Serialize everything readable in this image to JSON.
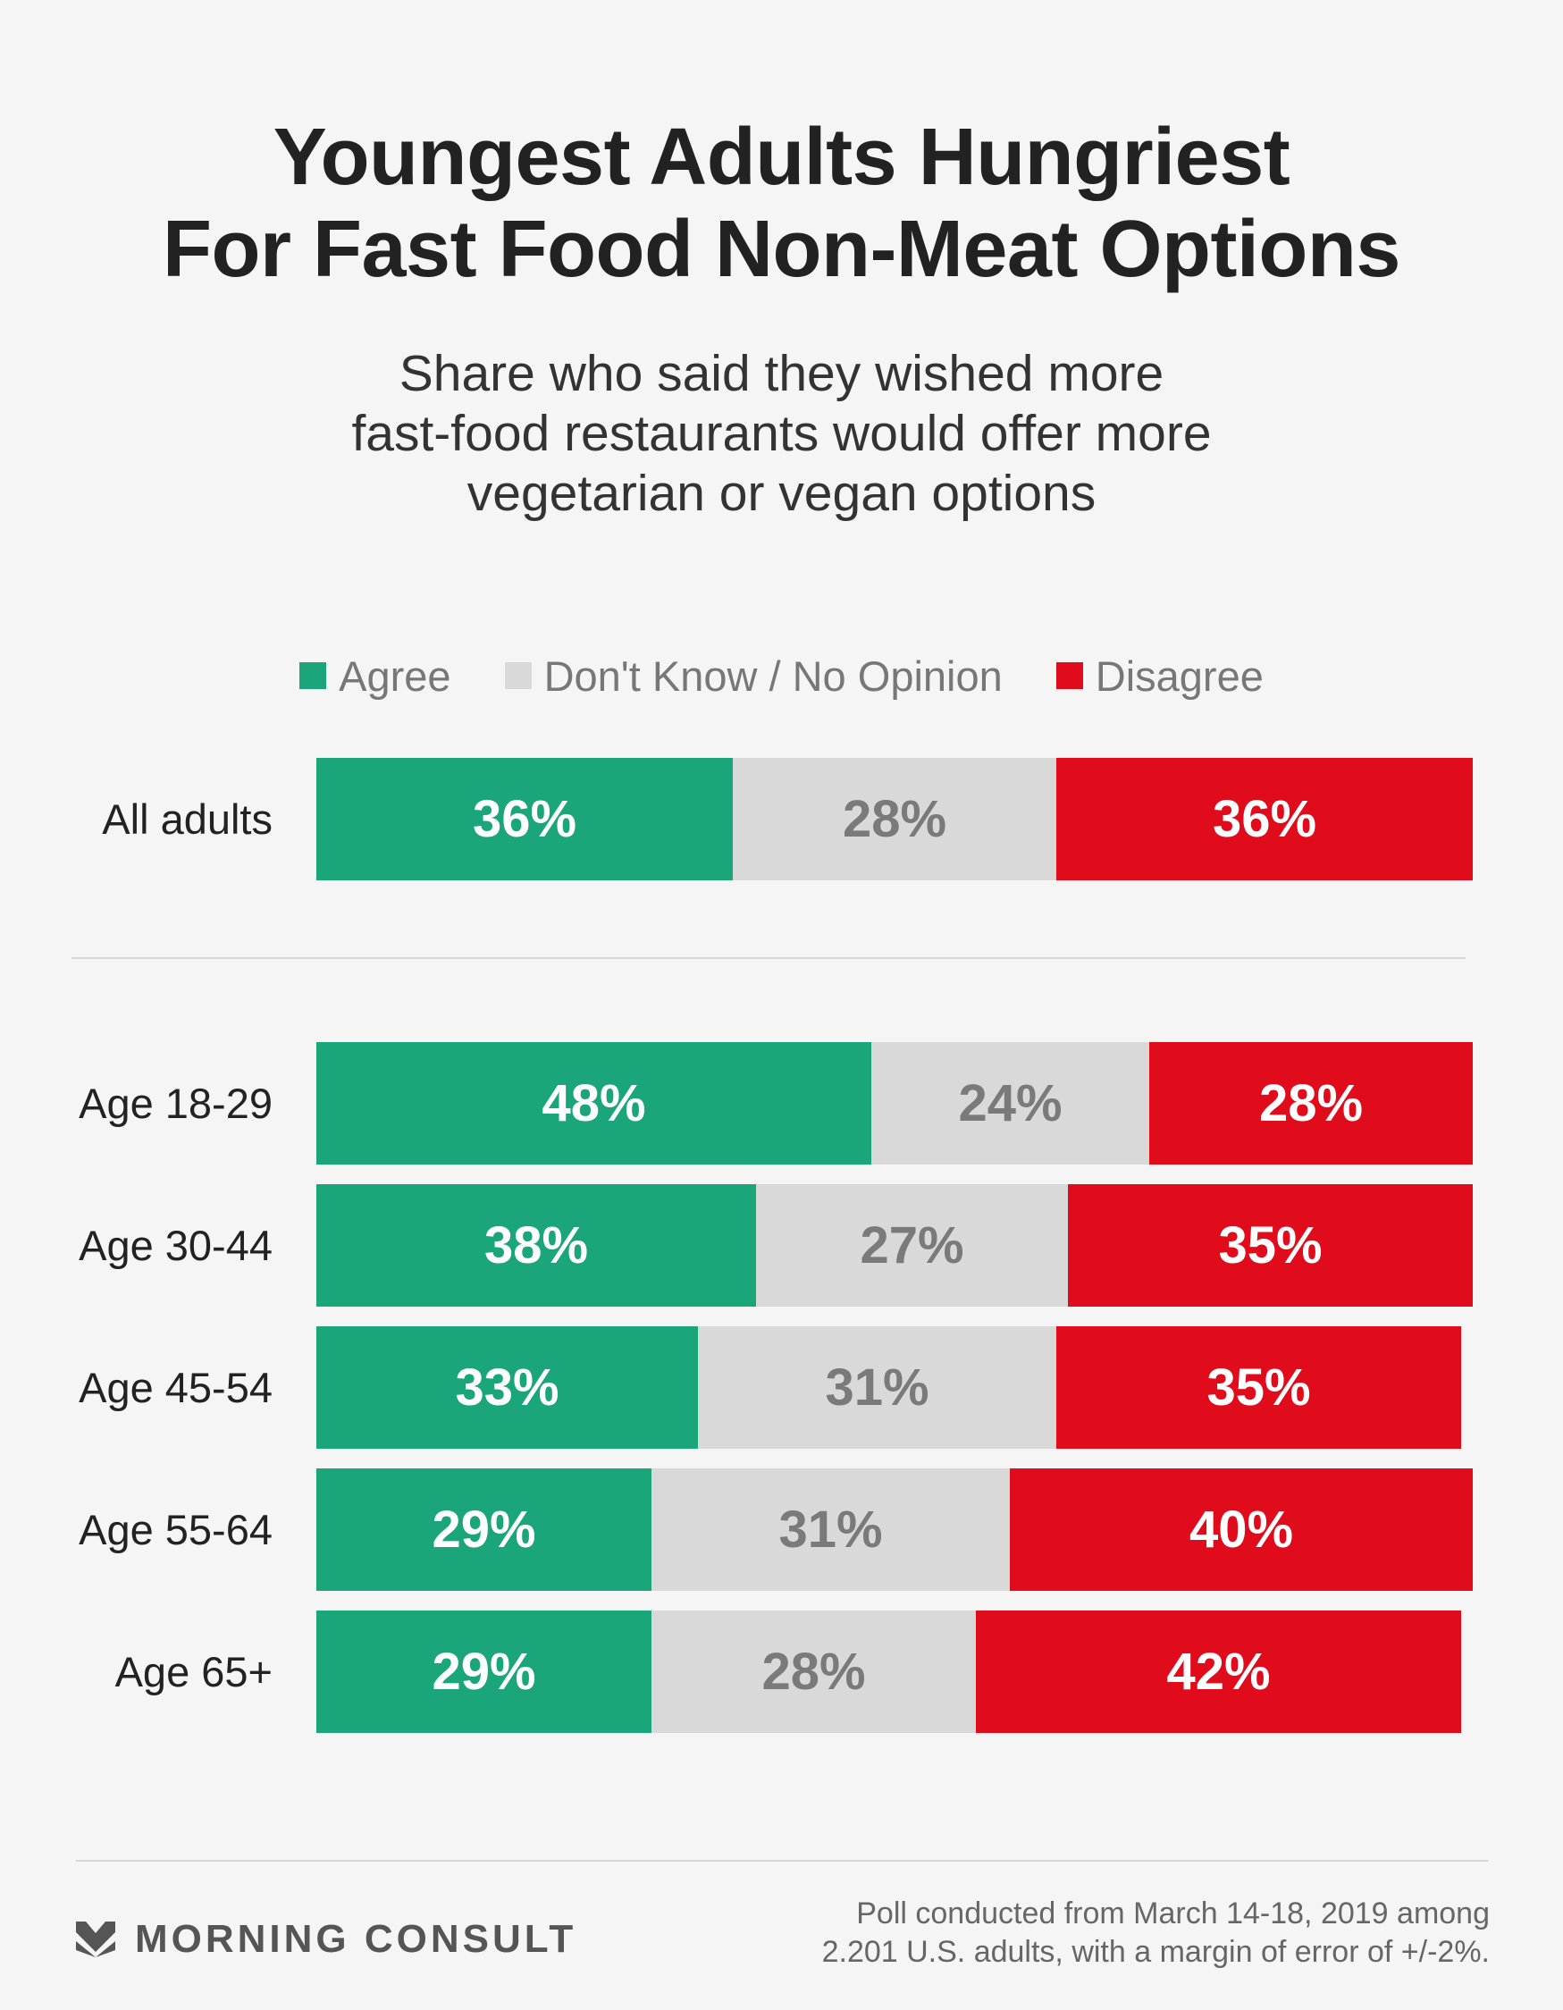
{
  "chart_data": {
    "type": "bar",
    "orientation": "horizontal",
    "stacked": true,
    "title": "Youngest Adults Hungriest For Fast Food Non-Meat Options",
    "title_lines": [
      "Youngest Adults Hungriest",
      "For Fast Food Non-Meat Options"
    ],
    "subtitle_lines": [
      "Share who said they wished more",
      "fast-food restaurants would offer more",
      "vegetarian or vegan options"
    ],
    "legend_position": "top",
    "categories": [
      "All adults",
      "Age 18-29",
      "Age 30-44",
      "Age 45-54",
      "Age 55-64",
      "Age 65+"
    ],
    "series": [
      {
        "name": "Agree",
        "color": "#1aa57a",
        "values": [
          36,
          48,
          38,
          33,
          29,
          29
        ],
        "labels": [
          "36%",
          "48%",
          "38%",
          "33%",
          "29%",
          "29%"
        ]
      },
      {
        "name": "Don't Know / No Opinion",
        "color": "#d9d9d9",
        "values": [
          28,
          24,
          27,
          31,
          31,
          28
        ],
        "labels": [
          "28%",
          "24%",
          "27%",
          "31%",
          "31%",
          "28%"
        ]
      },
      {
        "name": "Disagree",
        "color": "#e00b1b",
        "values": [
          36,
          28,
          35,
          35,
          40,
          42
        ],
        "labels": [
          "36%",
          "28%",
          "35%",
          "35%",
          "40%",
          "42%"
        ]
      }
    ],
    "xlim": [
      0,
      100
    ]
  },
  "footer": {
    "brand": "MORNING CONSULT",
    "note_lines": [
      "Poll conducted from March 14-18, 2019 among",
      "2.201 U.S. adults, with a margin of error of +/-2%."
    ]
  }
}
